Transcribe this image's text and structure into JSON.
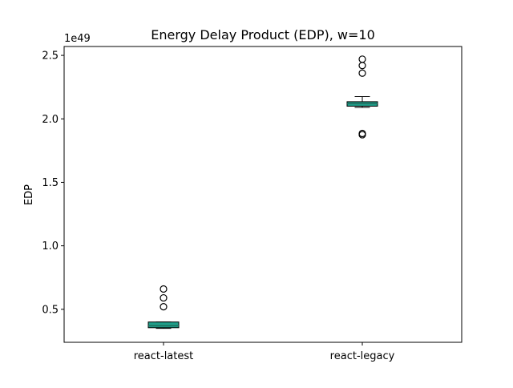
{
  "chart_data": {
    "type": "box",
    "title": "Energy Delay Product (EDP), w=10",
    "ylabel": "EDP",
    "xlabel": "",
    "offset_text": "1e49",
    "ylim": [
      0.24,
      2.57
    ],
    "yticks": [
      0.5,
      1.0,
      1.5,
      2.0,
      2.5
    ],
    "ytick_labels": [
      "0.5",
      "1.0",
      "1.5",
      "2.0",
      "2.5"
    ],
    "categories": [
      "react-latest",
      "react-legacy"
    ],
    "box_color": "#1f9e89",
    "boxes": [
      {
        "category": "react-latest",
        "whisker_low": 0.35,
        "q1": 0.355,
        "median": 0.37,
        "q3": 0.4,
        "whisker_high": 0.4,
        "fliers": [
          0.52,
          0.59,
          0.66
        ]
      },
      {
        "category": "react-legacy",
        "whisker_low": 2.09,
        "q1": 2.1,
        "median": 2.12,
        "q3": 2.135,
        "whisker_high": 2.175,
        "fliers": [
          1.875,
          1.885,
          2.36,
          2.42,
          2.47
        ]
      }
    ]
  }
}
